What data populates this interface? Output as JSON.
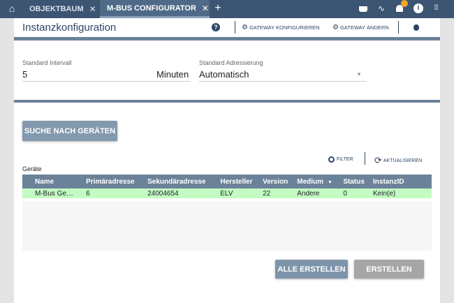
{
  "topbar": {
    "tabs": [
      {
        "label": "OBJEKTBAUM",
        "active": false
      },
      {
        "label": "M-BUS CONFIGURATOR",
        "active": true
      }
    ],
    "icons": [
      "home-icon",
      "basket-icon",
      "trend-icon",
      "bell-icon",
      "info-icon",
      "apps-grid-icon"
    ],
    "badge_icon": "wrench-icon"
  },
  "header": {
    "title": "Instanzkonfiguration",
    "help": "?",
    "configure": "GATEWAY KONFIGURIEREN",
    "change": "GATEWAY ÄNDERN"
  },
  "form": {
    "interval_label": "Standard Intervall",
    "interval_value": "5",
    "interval_unit": "Minuten",
    "addr_label": "Standard Adressierung",
    "addr_value": "Automatisch"
  },
  "search_button": "SUCHE NACH GERÄTEN",
  "devices": {
    "label": "Geräte",
    "filter": "FILTER",
    "refresh": "AKTUALISIEREN",
    "columns": [
      "Name",
      "Primäradresse",
      "Sekundäradresse",
      "Hersteller",
      "Version",
      "Medium",
      "Status",
      "InstanzID"
    ],
    "rows": [
      [
        "M-Bus Ge…",
        "6",
        "24004654",
        "ELV",
        "22",
        "Andere",
        "0",
        "Kein(e)"
      ]
    ]
  },
  "actions": {
    "create_all": "ALLE ERSTELLEN",
    "create": "ERSTELLEN"
  },
  "colors": {
    "topbar": "#3b5573",
    "accent": "#6b8299",
    "selected_row": "#c3fbc3",
    "badge": "#f5a623"
  }
}
